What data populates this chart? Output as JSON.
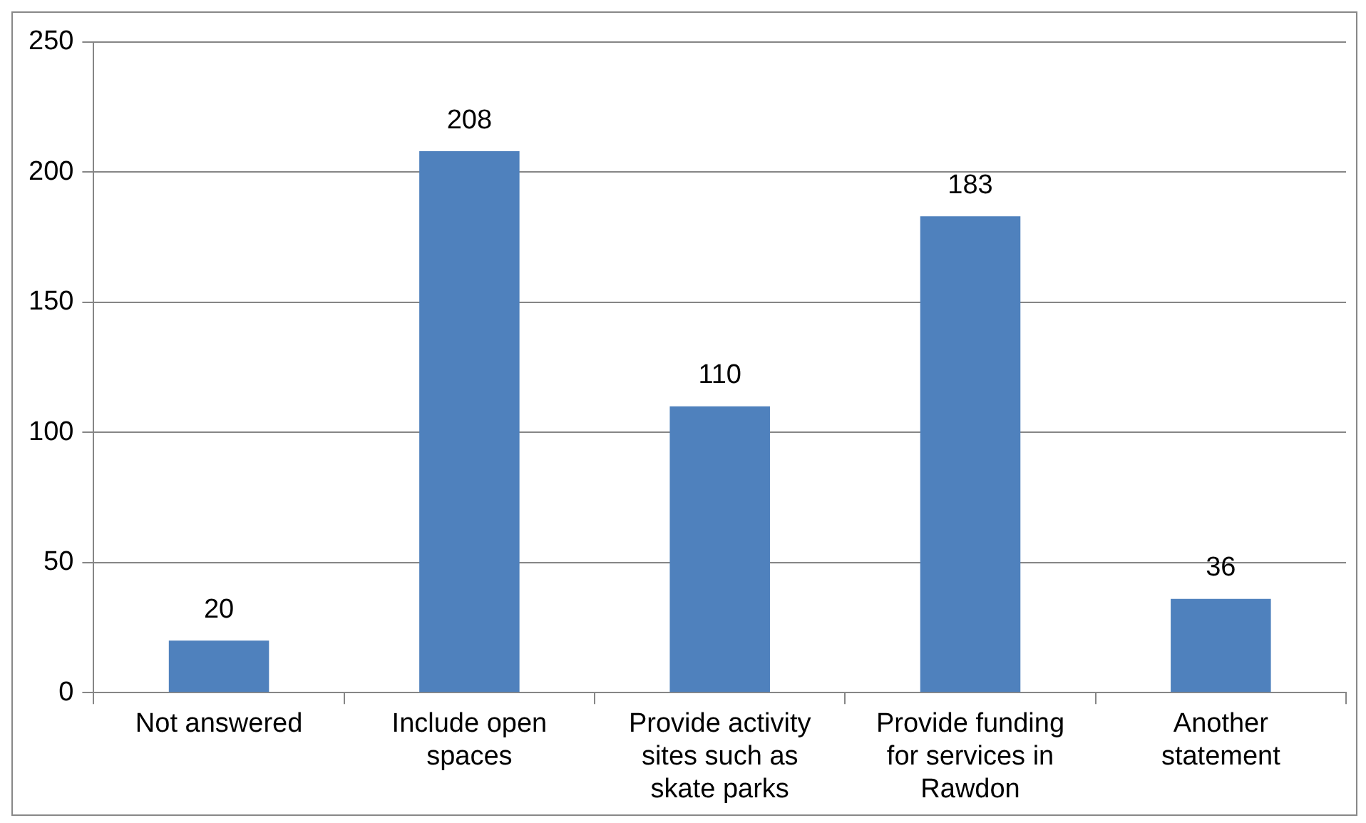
{
  "chart_data": {
    "type": "bar",
    "categories": [
      "Not answered",
      "Include open spaces",
      "Provide activity sites such as skate parks",
      "Provide funding for services in Rawdon",
      "Another statement"
    ],
    "values": [
      20,
      208,
      110,
      183,
      36
    ],
    "color": "#4f81bd",
    "ylim": [
      0,
      250
    ],
    "yticks": [
      0,
      50,
      100,
      150,
      200,
      250
    ],
    "grid": "y",
    "data_labels": true,
    "legend": false
  }
}
